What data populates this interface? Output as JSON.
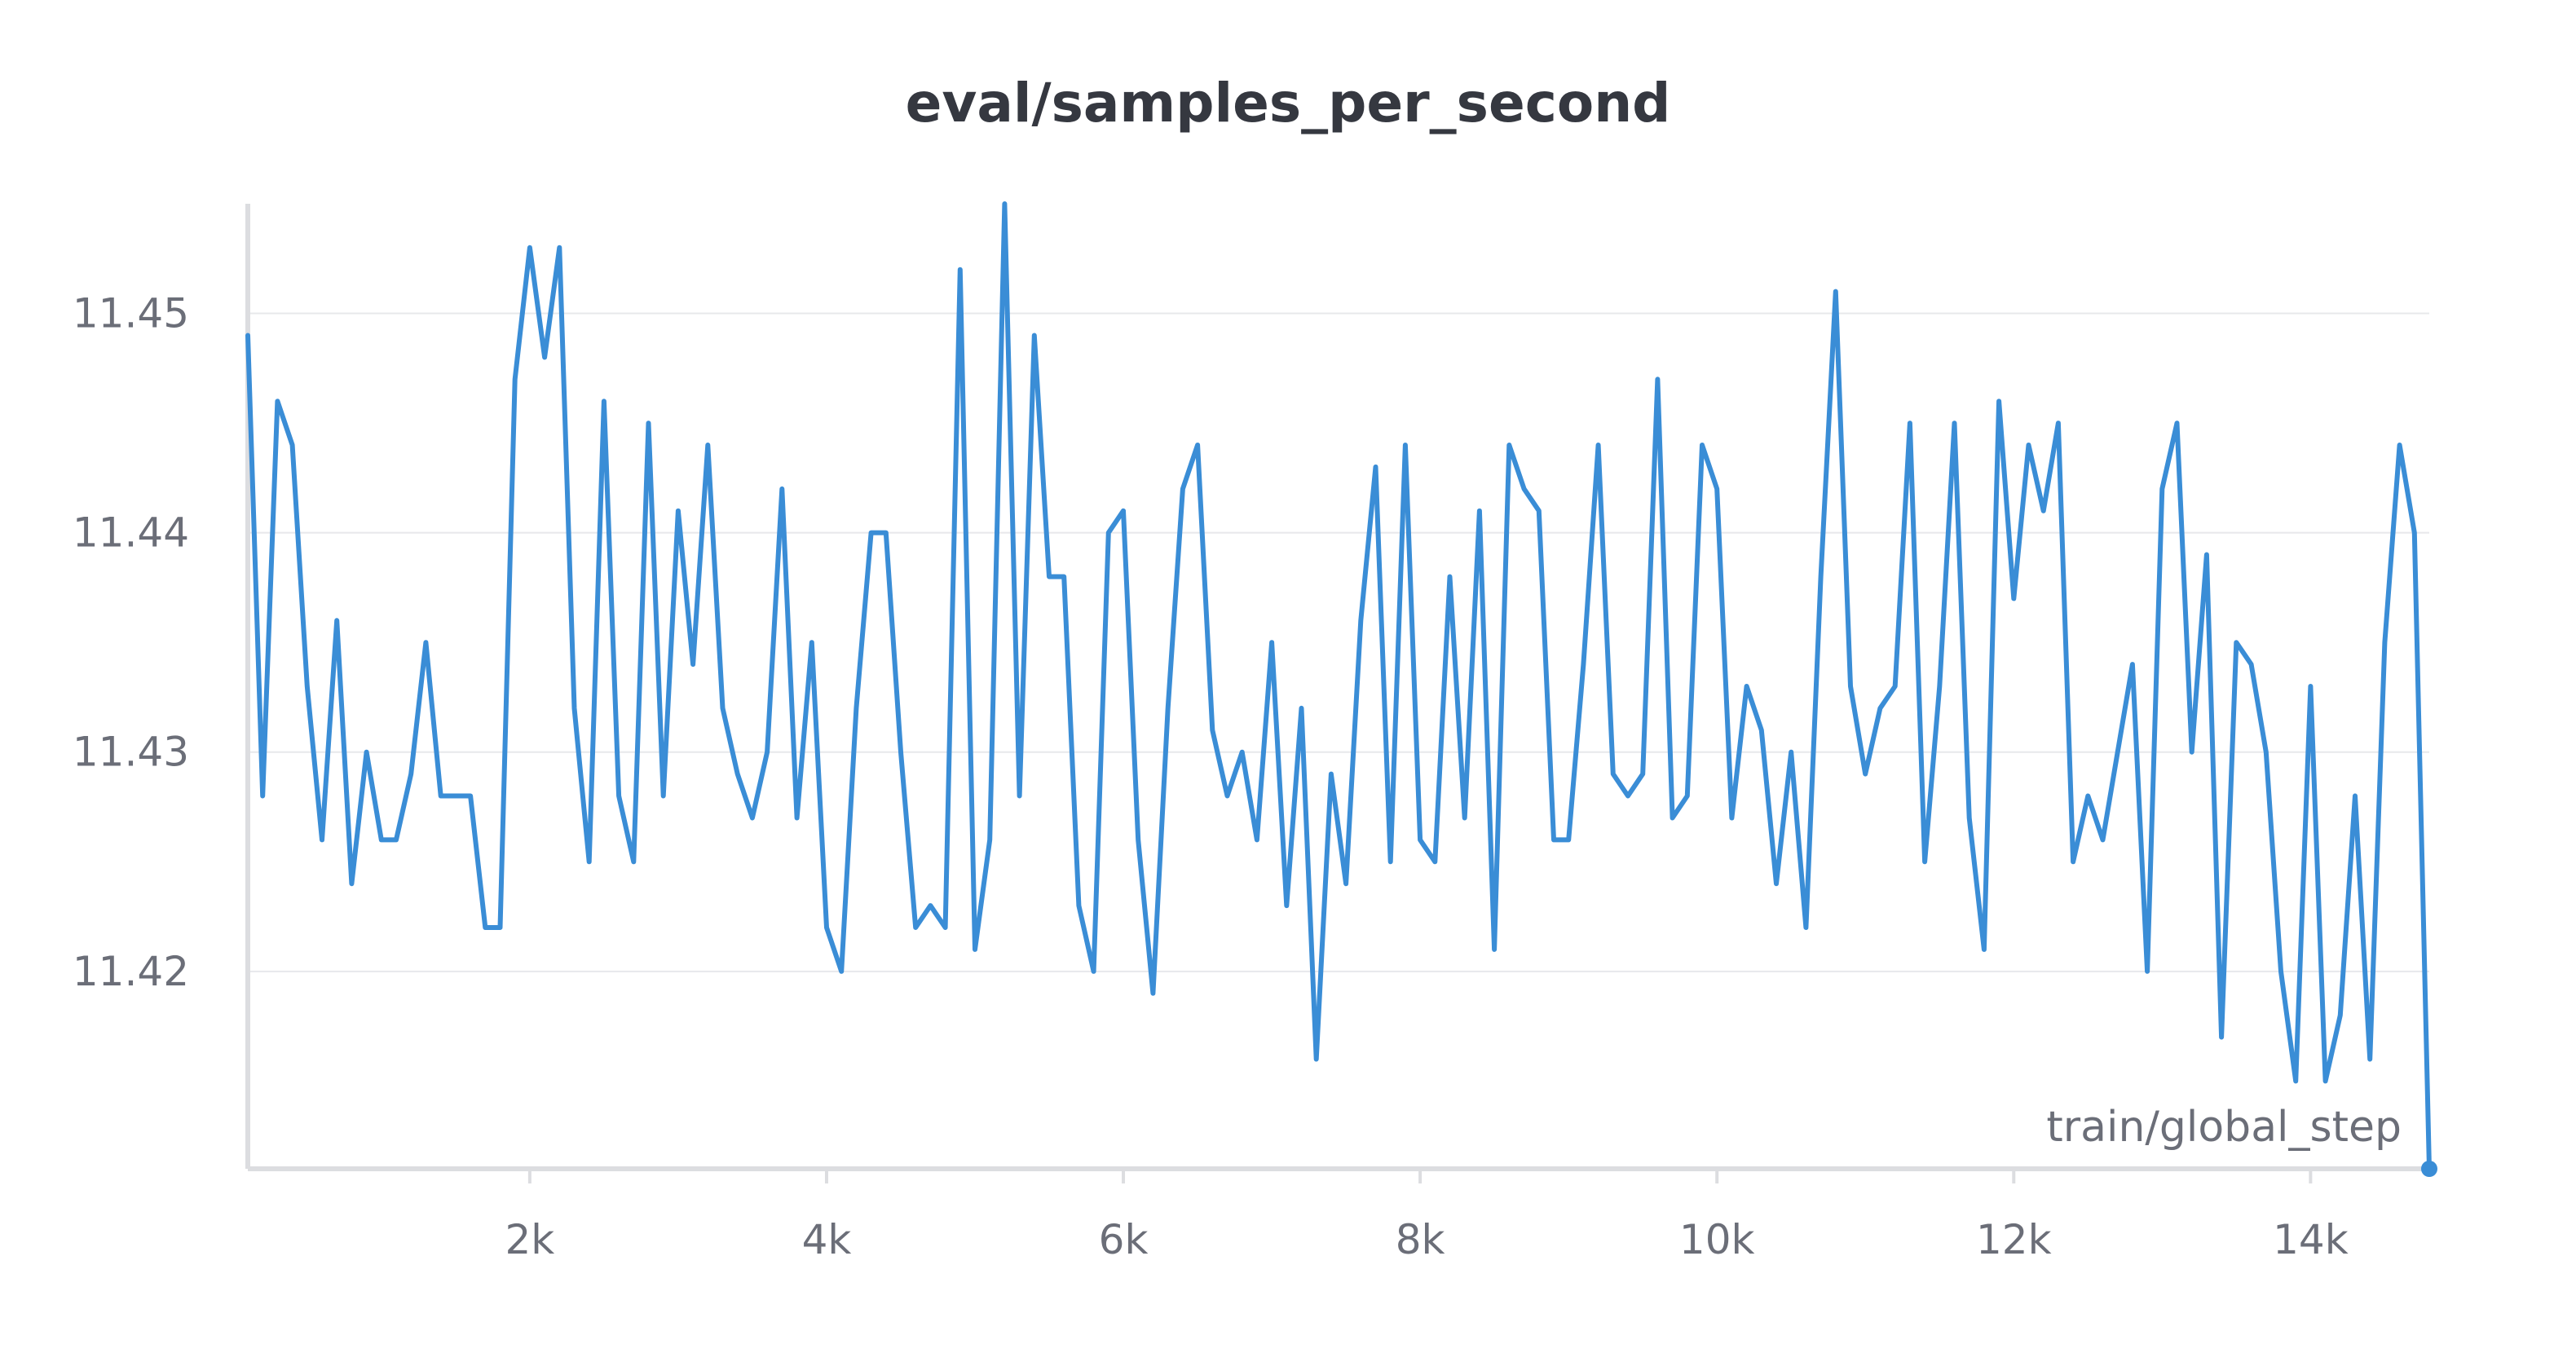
{
  "chart_data": {
    "type": "line",
    "title": "eval/samples_per_second",
    "xlabel": "train/global_step",
    "ylabel": "",
    "x_ticks": [
      {
        "value": 2000,
        "label": "2k"
      },
      {
        "value": 4000,
        "label": "4k"
      },
      {
        "value": 6000,
        "label": "6k"
      },
      {
        "value": 8000,
        "label": "8k"
      },
      {
        "value": 10000,
        "label": "10k"
      },
      {
        "value": 12000,
        "label": "12k"
      },
      {
        "value": 14000,
        "label": "14k"
      }
    ],
    "y_ticks": [
      {
        "value": 11.42,
        "label": "11.42"
      },
      {
        "value": 11.43,
        "label": "11.43"
      },
      {
        "value": 11.44,
        "label": "11.44"
      },
      {
        "value": 11.45,
        "label": "11.45"
      }
    ],
    "xlim": [
      100,
      14800
    ],
    "ylim": [
      11.411,
      11.455
    ],
    "grid": true,
    "legend": "none",
    "colors": {
      "line": "#3a8dd6",
      "grid": "#e7e8eb",
      "axis": "#dcdde0",
      "text": "#6b6e78",
      "title": "#353840"
    },
    "series": [
      {
        "x": [
          100,
          200,
          300,
          400,
          500,
          600,
          700,
          800,
          900,
          1000,
          1100,
          1200,
          1300,
          1400,
          1500,
          1600,
          1700,
          1800,
          1900,
          2000,
          2100,
          2200,
          2300,
          2400,
          2500,
          2600,
          2700,
          2800,
          2900,
          3000,
          3100,
          3200,
          3300,
          3400,
          3500,
          3600,
          3700,
          3800,
          3900,
          4000,
          4100,
          4200,
          4300,
          4400,
          4500,
          4600,
          4700,
          4800,
          4900,
          5000,
          5100,
          5200,
          5300,
          5400,
          5500,
          5600,
          5700,
          5800,
          5900,
          6000,
          6100,
          6200,
          6300,
          6400,
          6500,
          6600,
          6700,
          6800,
          6900,
          7000,
          7100,
          7200,
          7300,
          7400,
          7500,
          7600,
          7700,
          7800,
          7900,
          8000,
          8100,
          8200,
          8300,
          8400,
          8500,
          8600,
          8700,
          8800,
          8900,
          9000,
          9100,
          9200,
          9300,
          9400,
          9500,
          9600,
          9700,
          9800,
          9900,
          10000,
          10100,
          10200,
          10300,
          10400,
          10500,
          10600,
          10700,
          10800,
          10900,
          11000,
          11100,
          11200,
          11300,
          11400,
          11500,
          11600,
          11700,
          11800,
          11900,
          12000,
          12100,
          12200,
          12300,
          12400,
          12500,
          12600,
          12700,
          12800,
          12900,
          13000,
          13100,
          13200,
          13300,
          13400,
          13500,
          13600,
          13700,
          13800,
          13900,
          14000,
          14100,
          14200,
          14300,
          14400,
          14500,
          14600,
          14700,
          14800
        ],
        "y": [
          11.449,
          11.428,
          11.446,
          11.444,
          11.433,
          11.426,
          11.436,
          11.424,
          11.43,
          11.426,
          11.426,
          11.429,
          11.435,
          11.428,
          11.428,
          11.428,
          11.422,
          11.422,
          11.447,
          11.453,
          11.448,
          11.453,
          11.432,
          11.425,
          11.446,
          11.428,
          11.425,
          11.445,
          11.428,
          11.441,
          11.434,
          11.444,
          11.432,
          11.429,
          11.427,
          11.43,
          11.442,
          11.427,
          11.435,
          11.422,
          11.42,
          11.432,
          11.44,
          11.44,
          11.43,
          11.422,
          11.423,
          11.422,
          11.452,
          11.421,
          11.426,
          11.455,
          11.428,
          11.449,
          11.438,
          11.438,
          11.423,
          11.42,
          11.44,
          11.441,
          11.426,
          11.419,
          11.432,
          11.442,
          11.444,
          11.431,
          11.428,
          11.43,
          11.426,
          11.435,
          11.423,
          11.432,
          11.416,
          11.429,
          11.424,
          11.436,
          11.443,
          11.425,
          11.444,
          11.426,
          11.425,
          11.438,
          11.427,
          11.441,
          11.421,
          11.444,
          11.442,
          11.441,
          11.426,
          11.426,
          11.434,
          11.444,
          11.429,
          11.428,
          11.429,
          11.447,
          11.427,
          11.428,
          11.444,
          11.442,
          11.427,
          11.433,
          11.431,
          11.424,
          11.43,
          11.422,
          11.438,
          11.451,
          11.433,
          11.429,
          11.432,
          11.433,
          11.445,
          11.425,
          11.433,
          11.445,
          11.427,
          11.421,
          11.446,
          11.437,
          11.444,
          11.441,
          11.445,
          11.425,
          11.428,
          11.426,
          11.43,
          11.434,
          11.42,
          11.442,
          11.445,
          11.43,
          11.439,
          11.417,
          11.435,
          11.434,
          11.43,
          11.42,
          11.415,
          11.433,
          11.415,
          11.418,
          11.428,
          11.416,
          11.435,
          11.444,
          11.44,
          11.411
        ]
      }
    ]
  }
}
